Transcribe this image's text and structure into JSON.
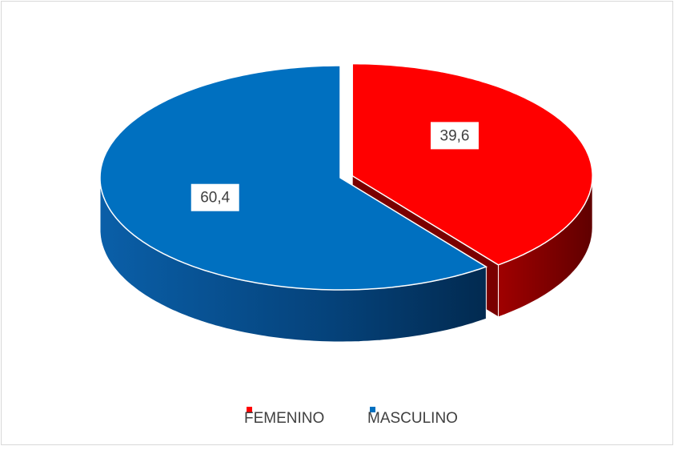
{
  "chart_data": {
    "type": "pie3d",
    "categories": [
      "FEMENINO",
      "MASCULINO"
    ],
    "values": [
      39.6,
      60.4
    ],
    "value_labels": [
      "39,6",
      "60,4"
    ],
    "colors": [
      "#ff0000",
      "#0070c0"
    ],
    "legend": "bottom"
  }
}
